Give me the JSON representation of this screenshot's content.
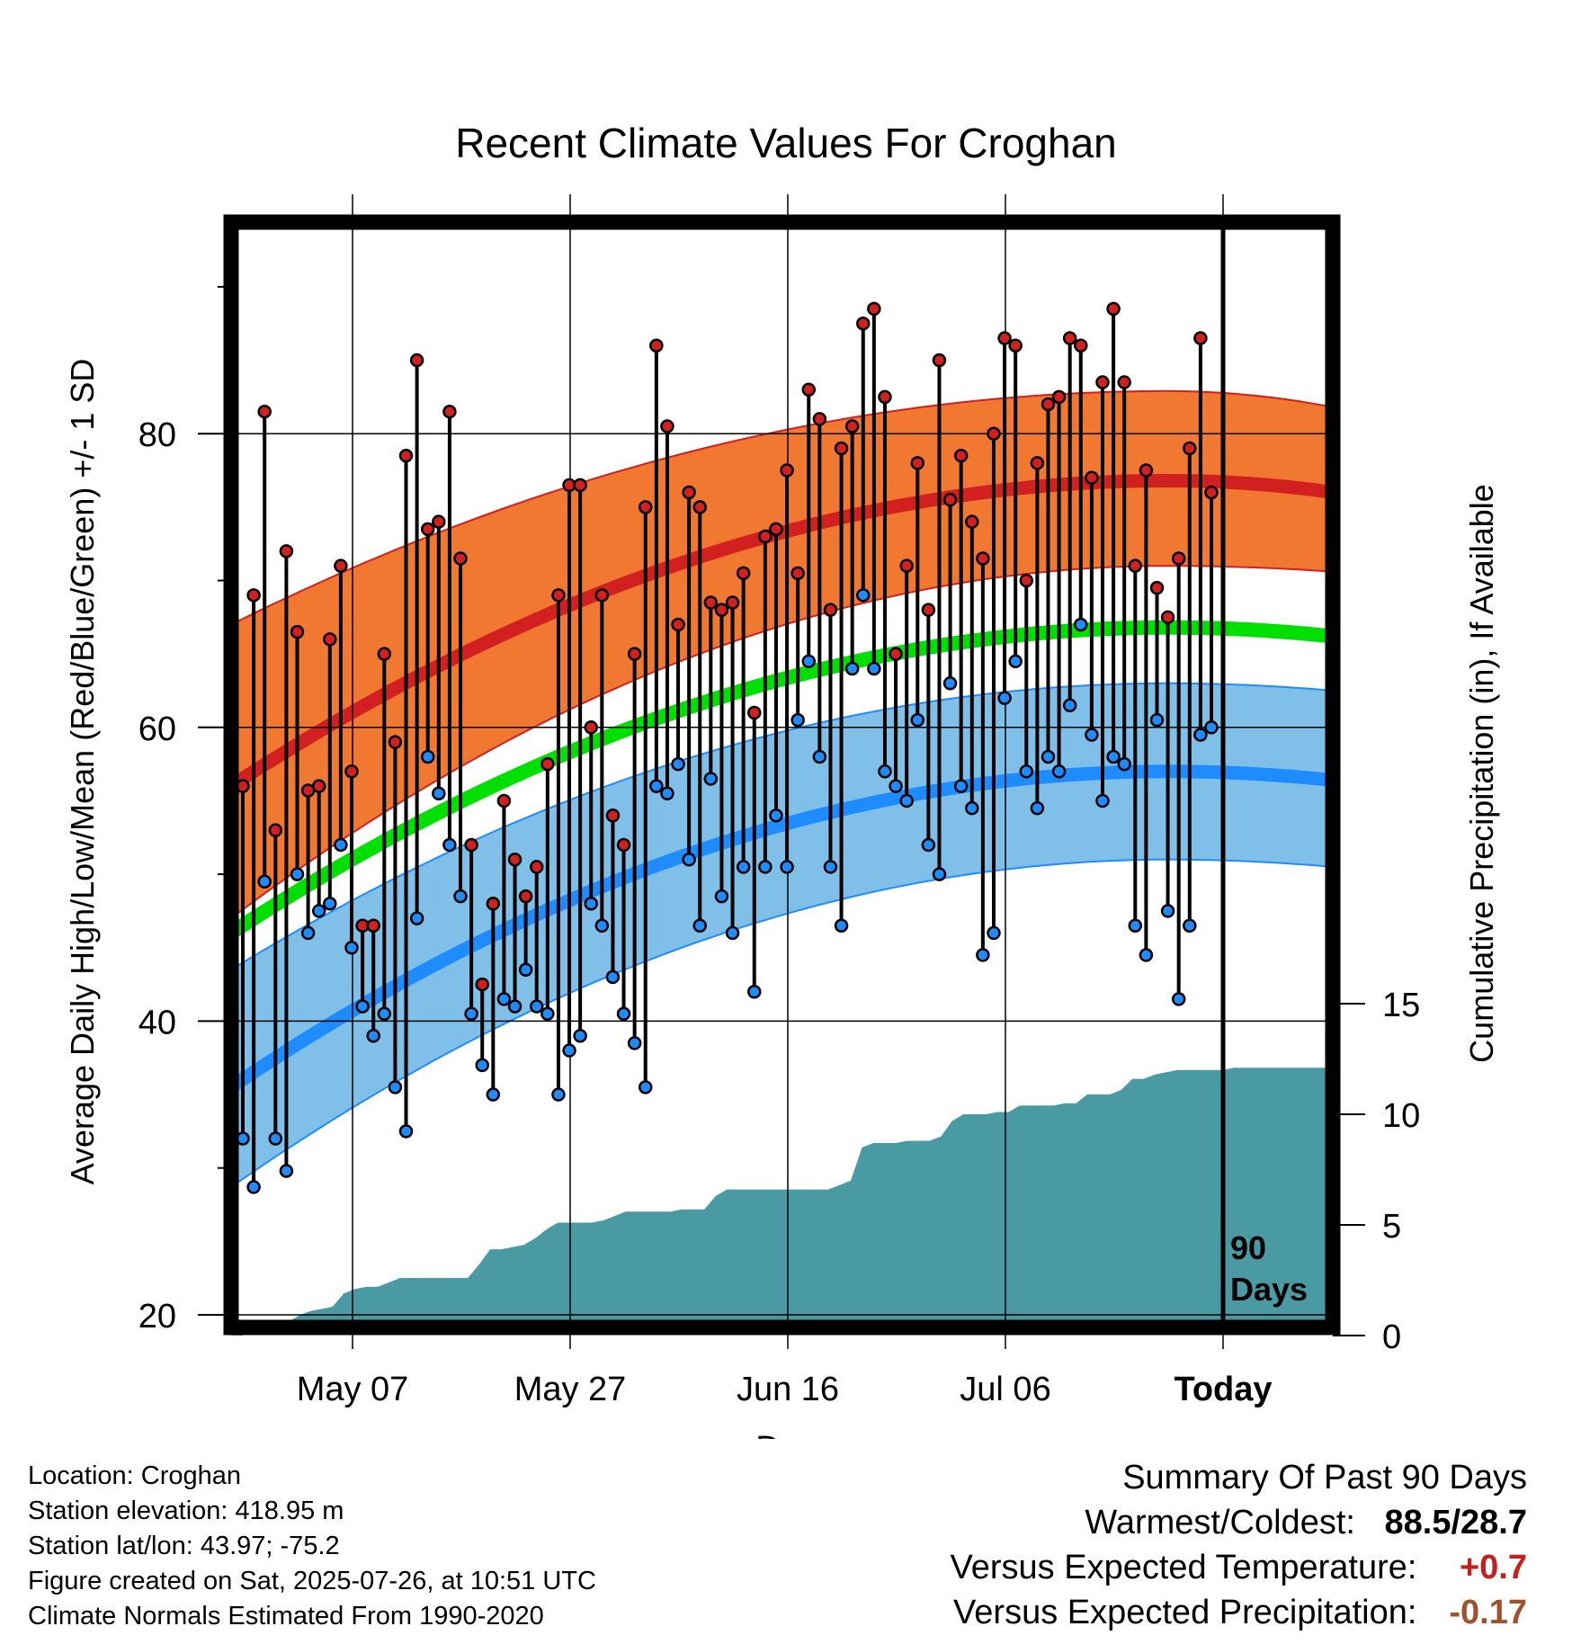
{
  "chart_data": {
    "type": "line",
    "title": "Recent Climate Values For Croghan",
    "xlabel": "Day",
    "ylabel": "Average Daily High/Low/Mean (Red/Blue/Green) +/- 1 SD",
    "y2label": "Cumulative Precipitation (in), If Available",
    "x_tick_labels": [
      "May 07",
      "May 27",
      "Jun 16",
      "Jul 06",
      "Today"
    ],
    "y_ticks": [
      20,
      40,
      60,
      80
    ],
    "y2_ticks": [
      0,
      5,
      10,
      15
    ],
    "ylim": [
      19,
      93
    ],
    "y2lim": [
      0,
      37
    ],
    "today_index": 90,
    "today_label": "90 Days",
    "grid": true,
    "colors": {
      "high_band": "#f07830",
      "high_line": "#d22020",
      "low_band": "#80c0e8",
      "low_line": "#1e8cff",
      "mean_line": "#00e000",
      "precip": "#4a9aa4",
      "high_dot": "#d22020",
      "low_dot": "#1e8cff"
    },
    "normals": {
      "high_mean": {
        "start": 56.0,
        "peak": 76.8,
        "end": 76.0
      },
      "high_upper": {
        "start": 67.0,
        "peak": 82.9,
        "end": 81.8
      },
      "high_lower": {
        "start": 47.0,
        "peak": 71.0,
        "end": 70.6
      },
      "low_mean": {
        "start": 35.5,
        "peak": 57.0,
        "end": 56.4
      },
      "low_upper": {
        "start": 43.5,
        "peak": 63.0,
        "end": 62.5
      },
      "low_lower": {
        "start": 28.7,
        "peak": 51.0,
        "end": 50.5
      },
      "mean": {
        "start": 46.0,
        "peak": 66.8,
        "end": 66.2
      }
    },
    "daily": {
      "highs": [
        56,
        69,
        81.5,
        53,
        72,
        66.5,
        55.7,
        56,
        66,
        71,
        57,
        46.5,
        46.5,
        65,
        59,
        78.5,
        85,
        73.5,
        74,
        81.5,
        71.5,
        52,
        42.5,
        48,
        55,
        51,
        48.5,
        50.5,
        57.5,
        69,
        76.5,
        76.5,
        60,
        69,
        54,
        52,
        65,
        75,
        86,
        80.5,
        67,
        76,
        75,
        68.5,
        68,
        68.5,
        70.5,
        61,
        73,
        73.5,
        77.5,
        70.5,
        83,
        81,
        68,
        79,
        80.5,
        87.5,
        88.5,
        82.5,
        65,
        71,
        78,
        68,
        85,
        75.5,
        78.5,
        74,
        71.5,
        80,
        86.5,
        86,
        70,
        78,
        82,
        82.5,
        86.5,
        86,
        77,
        83.5,
        88.5,
        83.5,
        71,
        77.5,
        69.5,
        67.5,
        71.5,
        79,
        86.5,
        76
      ],
      "lows": [
        32,
        28.7,
        49.5,
        32,
        29.8,
        50,
        46,
        47.5,
        48,
        52,
        45,
        41,
        39,
        40.5,
        35.5,
        32.5,
        47,
        58,
        55.5,
        52,
        48.5,
        40.5,
        37,
        35,
        41.5,
        41,
        43.5,
        41,
        40.5,
        35,
        38,
        39,
        48,
        46.5,
        43,
        40.5,
        38.5,
        35.5,
        56,
        55.5,
        57.5,
        51,
        46.5,
        56.5,
        48.5,
        46,
        50.5,
        42,
        50.5,
        54,
        50.5,
        60.5,
        64.5,
        58,
        50.5,
        46.5,
        64,
        69,
        64,
        57,
        56,
        55,
        60.5,
        52,
        50,
        63,
        56,
        54.5,
        44.5,
        46,
        62,
        64.5,
        57,
        54.5,
        58,
        57,
        61.5,
        67,
        59.5,
        55,
        58,
        57.5,
        46.5,
        44.5,
        60.5,
        47.5,
        41.5,
        46.5,
        59.5,
        60
      ]
    },
    "precip_cumulative": [
      0,
      0,
      0.3,
      0.3,
      0.4,
      0.6,
      0.9,
      1.1,
      1.2,
      1.3,
      1.9,
      2.1,
      2.2,
      2.2,
      2.4,
      2.6,
      2.6,
      2.6,
      2.6,
      2.6,
      2.6,
      2.6,
      3.2,
      3.9,
      3.9,
      4.0,
      4.1,
      4.4,
      4.8,
      5.1,
      5.1,
      5.1,
      5.1,
      5.2,
      5.4,
      5.6,
      5.6,
      5.6,
      5.6,
      5.6,
      5.7,
      5.7,
      5.7,
      6.3,
      6.6,
      6.6,
      6.6,
      6.6,
      6.6,
      6.6,
      6.6,
      6.6,
      6.6,
      6.6,
      6.8,
      7.0,
      8.5,
      8.7,
      8.7,
      8.7,
      8.8,
      8.8,
      8.8,
      9.0,
      9.7,
      10.0,
      10.0,
      10.0,
      10.1,
      10.1,
      10.4,
      10.4,
      10.4,
      10.4,
      10.5,
      10.5,
      10.9,
      10.9,
      10.9,
      11.1,
      11.6,
      11.6,
      11.8,
      11.9,
      12.0,
      12.0,
      12.0,
      12.0,
      12.0,
      12.1
    ],
    "summary": {
      "heading": "Summary Of Past 90 Days",
      "warm_cold_label": "Warmest/Coldest:",
      "warm_cold_value": "88.5/28.7",
      "temp_label": "Versus Expected Temperature:",
      "temp_value": "+0.7",
      "precip_label": "Versus Expected Precipitation:",
      "precip_value": "-0.17"
    }
  },
  "footer": {
    "location": "Location: Croghan",
    "elevation": "Station elevation: 418.95 m",
    "latlon": "Station lat/lon: 43.97; -75.2",
    "created": "Figure created on Sat, 2025-07-26, at 10:51 UTC",
    "normals": "Climate Normals Estimated From 1990-2020"
  }
}
